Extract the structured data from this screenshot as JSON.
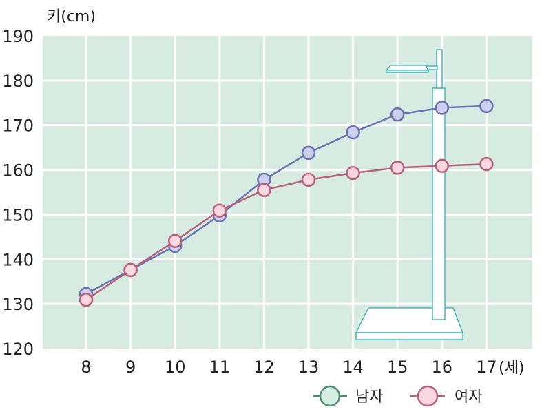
{
  "chart_data": {
    "type": "line",
    "ylabel": "키(cm)",
    "xlabel": "(세)",
    "x": [
      8,
      9,
      10,
      11,
      12,
      13,
      14,
      15,
      16,
      17
    ],
    "x_tick_labels": [
      "8",
      "9",
      "10",
      "11",
      "12",
      "13",
      "14",
      "15",
      "16",
      "17"
    ],
    "ylim": [
      120,
      190
    ],
    "y_ticks": [
      120,
      130,
      140,
      150,
      160,
      170,
      180,
      190
    ],
    "grid": true,
    "legend_position": "bottom-right",
    "series": [
      {
        "name": "남자",
        "color": "#6b72b0",
        "marker_fill": "#cdd0ee",
        "legend_marker_color": "#4e8c77",
        "legend_marker_fill": "#d4ede2",
        "values": [
          132.2,
          137.6,
          143.0,
          149.8,
          157.8,
          163.8,
          168.4,
          172.4,
          173.9,
          174.3
        ]
      },
      {
        "name": "여자",
        "color": "#b8607a",
        "marker_fill": "#fbd7df",
        "legend_marker_color": "#b8607a",
        "legend_marker_fill": "#fbd7df",
        "values": [
          130.9,
          137.6,
          144.1,
          150.9,
          155.5,
          157.8,
          159.3,
          160.5,
          160.9,
          161.3
        ]
      }
    ]
  },
  "colors": {
    "plot_bg": "#d8ebe2",
    "grid": "#ffffff",
    "stand": "#2aaeb0"
  }
}
